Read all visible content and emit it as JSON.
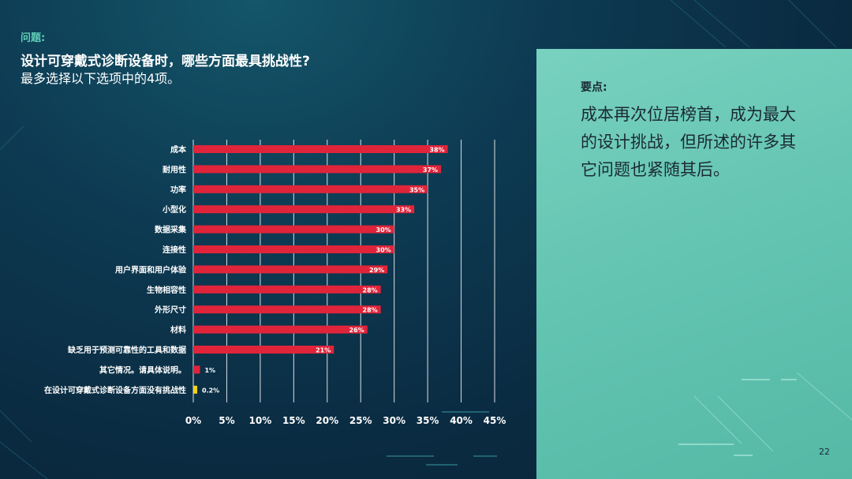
{
  "header": {
    "question_label": "问题:",
    "question": "设计可穿戴式诊断设备时，哪些方面最具挑战性?",
    "instruction": "最多选择以下选项中的4项。"
  },
  "key_points": {
    "label": "要点:",
    "text": "成本再次位居榜首，成为最大的设计挑战，但所述的许多其它问题也紧随其后。"
  },
  "page_number": "22",
  "colors": {
    "bar": "#e0243a",
    "bar_highlight": "#f2d21a",
    "panel": "#66c6b3",
    "accent": "#5fd0b8"
  },
  "chart_data": {
    "type": "bar",
    "orientation": "horizontal",
    "categories": [
      "成本",
      "耐用性",
      "功率",
      "小型化",
      "数据采集",
      "连接性",
      "用户界面和用户体验",
      "生物相容性",
      "外形尺寸",
      "材料",
      "缺乏用于预测可靠性的工具和数据",
      "其它情况。请具体说明。",
      "在设计可穿戴式诊断设备方面没有挑战性"
    ],
    "values": [
      38,
      37,
      35,
      33,
      30,
      30,
      29,
      28,
      28,
      26,
      21,
      1,
      0.2
    ],
    "value_labels": [
      "38%",
      "37%",
      "35%",
      "33%",
      "30%",
      "30%",
      "29%",
      "28%",
      "28%",
      "26%",
      "21%",
      "1%",
      "0.2%"
    ],
    "bar_colors": [
      "#e0243a",
      "#e0243a",
      "#e0243a",
      "#e0243a",
      "#e0243a",
      "#e0243a",
      "#e0243a",
      "#e0243a",
      "#e0243a",
      "#e0243a",
      "#e0243a",
      "#e0243a",
      "#f2d21a"
    ],
    "x_ticks": [
      "0%",
      "5%",
      "10%",
      "15%",
      "20%",
      "25%",
      "30%",
      "35%",
      "40%",
      "45%"
    ],
    "xlim": [
      0,
      45
    ],
    "grid": true
  }
}
